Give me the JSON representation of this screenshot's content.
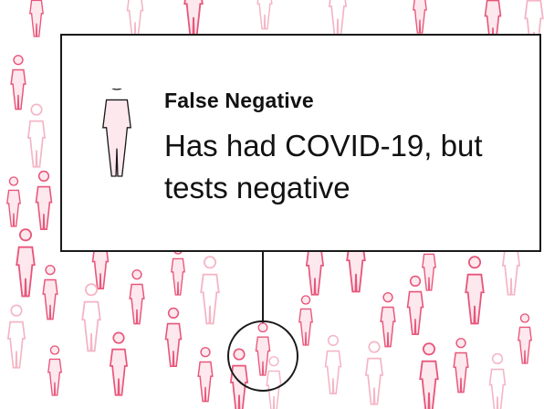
{
  "callout": {
    "title": "False Negative",
    "description": "Has had COVID-19, but tests negative",
    "figure_icon": "person-silhouette-icon"
  },
  "crowd": {
    "figure_icon": "person-silhouette-icon",
    "highlight_icon": "circle-highlight-icon"
  },
  "colors": {
    "figure_strong": "#e8567a",
    "figure_faint": "#f4b6c6",
    "figure_fill": "#fde8ee",
    "outline": "#1a1a1a",
    "background": "#ffffff"
  }
}
